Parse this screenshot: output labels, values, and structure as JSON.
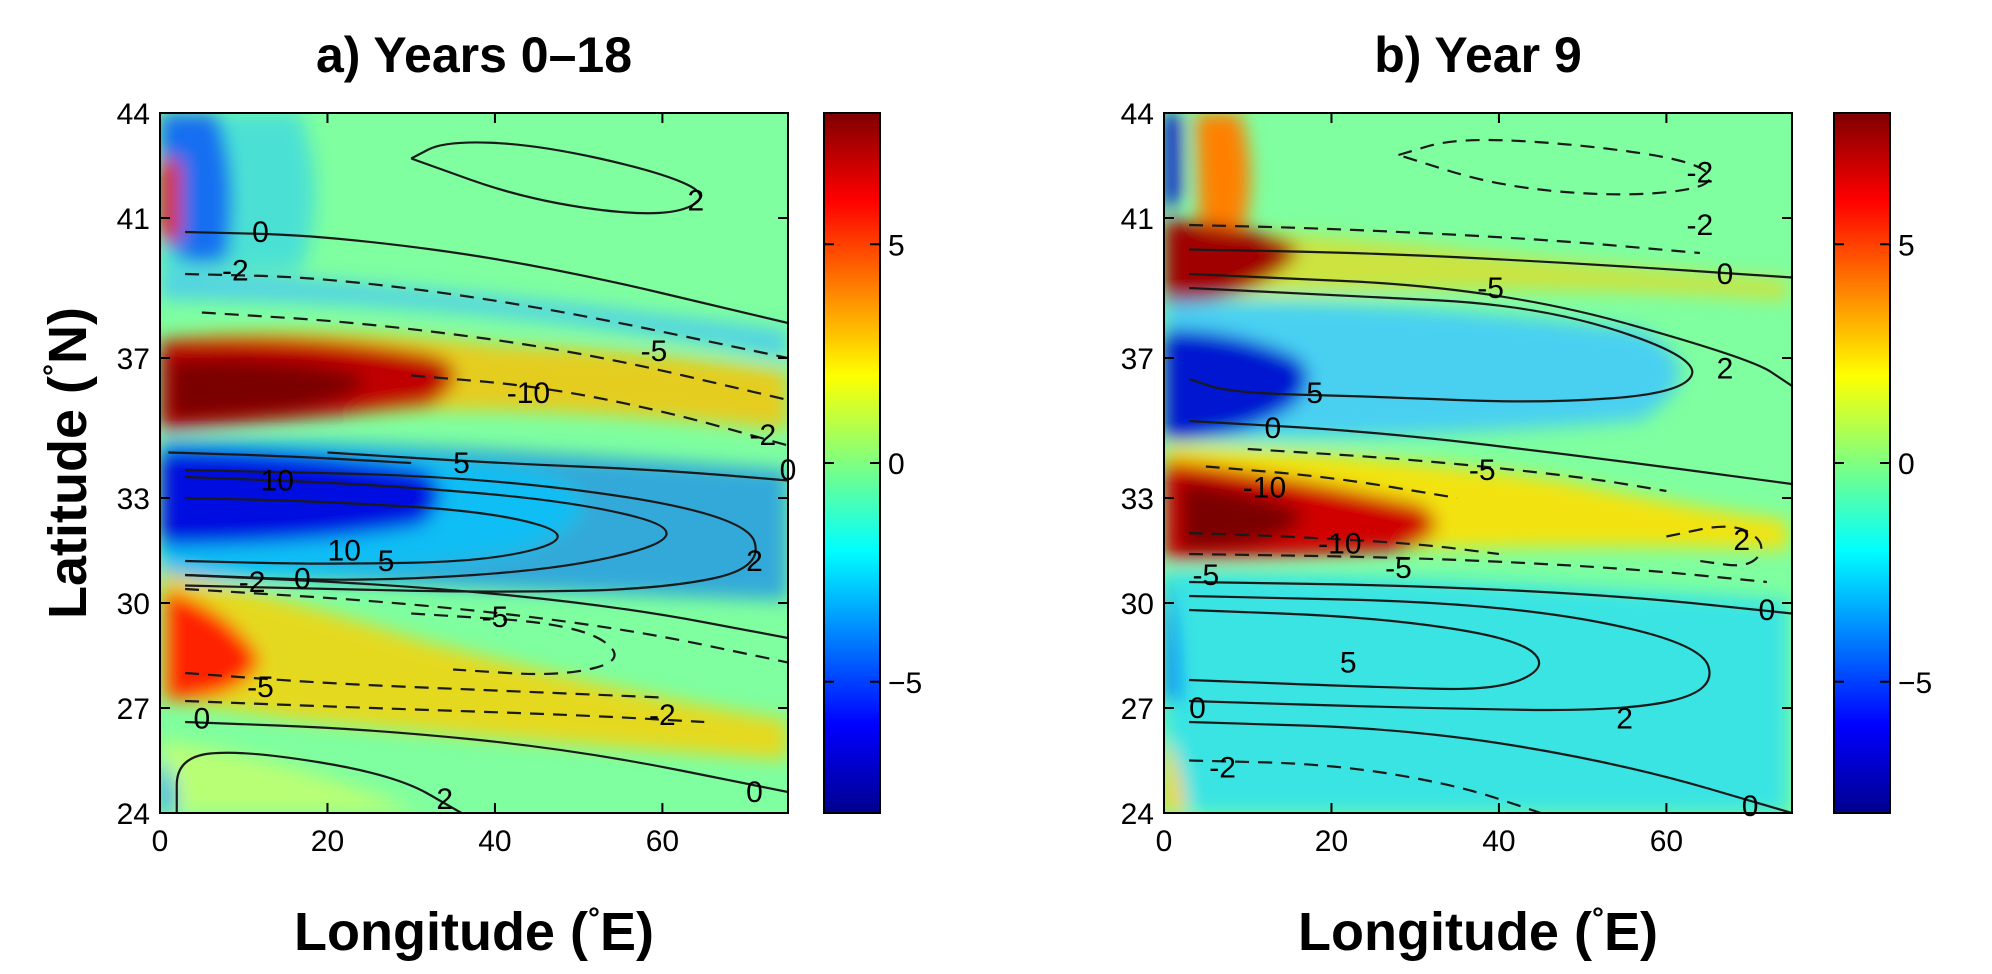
{
  "figure": {
    "ylabel_text": "Latitude (",
    "ylabel_deg": "°",
    "ylabel_unit": "N)",
    "xlabel_text": "Longitude (",
    "xlabel_deg": "°",
    "xlabel_unit": "E)"
  },
  "chart_data": [
    {
      "type": "heatmap",
      "title": "a) Years 0–18",
      "xlabel": "Longitude (°E)",
      "ylabel": "Latitude (°N)",
      "xlim": [
        0,
        75
      ],
      "ylim": [
        24,
        44
      ],
      "xticks": [
        0,
        20,
        40,
        60
      ],
      "yticks": [
        24,
        27,
        30,
        33,
        37,
        41,
        44
      ],
      "colorbar": {
        "range": [
          -8,
          8
        ],
        "ticks": [
          -5,
          0,
          5
        ],
        "colormap": "jet"
      },
      "contour_labels": [
        "0",
        "2",
        "0",
        "-2",
        "-5",
        "-10",
        "-2",
        "0",
        "10",
        "5",
        "2",
        "10",
        "0",
        "-2",
        "-5",
        "-5",
        "-2",
        "0",
        "0",
        "2"
      ],
      "contour_labels_positions_data": [
        {
          "text": "0",
          "lon": 12,
          "lat": 40.6
        },
        {
          "text": "2",
          "lon": 64,
          "lat": 41.5
        },
        {
          "text": "-2",
          "lon": 9,
          "lat": 39.5
        },
        {
          "text": "-5",
          "lon": 59,
          "lat": 37.2
        },
        {
          "text": "-10",
          "lon": 44,
          "lat": 36
        },
        {
          "text": "-2",
          "lon": 72,
          "lat": 34.8
        },
        {
          "text": "0",
          "lon": 75,
          "lat": 33.8
        },
        {
          "text": "10",
          "lon": 14,
          "lat": 33.5
        },
        {
          "text": "5",
          "lon": 36,
          "lat": 34
        },
        {
          "text": "2",
          "lon": 71,
          "lat": 31.2
        },
        {
          "text": "10",
          "lon": 22,
          "lat": 31.5
        },
        {
          "text": "0",
          "lon": 17,
          "lat": 30.7
        },
        {
          "text": "-2",
          "lon": 11,
          "lat": 30.6
        },
        {
          "text": "-5",
          "lon": 40,
          "lat": 29.6
        },
        {
          "text": "5",
          "lon": 27,
          "lat": 31.2
        },
        {
          "text": "-5",
          "lon": 12,
          "lat": 27.6
        },
        {
          "text": "-2",
          "lon": 60,
          "lat": 26.8
        },
        {
          "text": "0",
          "lon": 5,
          "lat": 26.7
        },
        {
          "text": "0",
          "lon": 71,
          "lat": 24.6
        },
        {
          "text": "2",
          "lon": 34,
          "lat": 24.4
        }
      ],
      "series": [
        {
          "level": 2,
          "style": "solid",
          "lon": [
            30,
            34,
            45,
            60,
            66,
            60,
            44,
            30
          ],
          "lat": [
            42.7,
            43.2,
            43.1,
            42.3,
            41.6,
            41.0,
            41.5,
            42.7
          ]
        },
        {
          "level": 0,
          "style": "solid",
          "lon": [
            3,
            20,
            45,
            75
          ],
          "lat": [
            40.6,
            40.5,
            39.7,
            38.0
          ]
        },
        {
          "level": -2,
          "style": "dashed",
          "lon": [
            3,
            20,
            45,
            75
          ],
          "lat": [
            39.4,
            39.3,
            38.5,
            37.0
          ]
        },
        {
          "level": -5,
          "style": "dashed",
          "lon": [
            5,
            25,
            50,
            75
          ],
          "lat": [
            38.3,
            38.0,
            37.2,
            35.8
          ]
        },
        {
          "level": -10,
          "style": "dashed",
          "lon": [
            30,
            45,
            60,
            75
          ],
          "lat": [
            36.5,
            36.2,
            35.5,
            34.5
          ]
        },
        {
          "level": 10,
          "style": "solid",
          "lon": [
            1,
            15,
            30
          ],
          "lat": [
            34.3,
            34.2,
            34.0
          ]
        },
        {
          "level": 5,
          "style": "solid",
          "lon": [
            20,
            40,
            60,
            75
          ],
          "lat": [
            34.3,
            34.0,
            33.8,
            33.5
          ]
        },
        {
          "level": 10,
          "style": "solid",
          "lon": [
            3,
            20,
            40,
            50,
            40,
            20,
            3
          ],
          "lat": [
            33.0,
            32.9,
            32.6,
            31.9,
            31.2,
            31.1,
            31.2
          ]
        },
        {
          "level": 5,
          "style": "solid",
          "lon": [
            3,
            25,
            50,
            64,
            50,
            25,
            3
          ],
          "lat": [
            33.6,
            33.4,
            32.9,
            32.0,
            31.0,
            30.6,
            30.8
          ]
        },
        {
          "level": 2,
          "style": "solid",
          "lon": [
            3,
            40,
            70,
            72,
            60,
            40,
            20,
            3
          ],
          "lat": [
            33.8,
            33.6,
            32.5,
            31.0,
            30.4,
            30.3,
            30.4,
            30.5
          ]
        },
        {
          "level": 0,
          "style": "solid",
          "lon": [
            3,
            30,
            55,
            75
          ],
          "lat": [
            30.8,
            30.5,
            29.9,
            29.0
          ]
        },
        {
          "level": -2,
          "style": "dashed",
          "lon": [
            3,
            30,
            55,
            75
          ],
          "lat": [
            30.4,
            30.0,
            29.3,
            28.3
          ]
        },
        {
          "level": -5,
          "style": "dashed",
          "lon": [
            30,
            50,
            56,
            48,
            35
          ],
          "lat": [
            29.7,
            29.4,
            28.4,
            27.9,
            28.1
          ]
        },
        {
          "level": -5,
          "style": "dashed",
          "lon": [
            3,
            20,
            40,
            60
          ],
          "lat": [
            28.0,
            27.7,
            27.5,
            27.3
          ]
        },
        {
          "level": -2,
          "style": "dashed",
          "lon": [
            3,
            25,
            50,
            65
          ],
          "lat": [
            27.2,
            27.0,
            26.8,
            26.6
          ]
        },
        {
          "level": 0,
          "style": "solid",
          "lon": [
            3,
            25,
            50,
            75
          ],
          "lat": [
            26.6,
            26.4,
            25.8,
            24.6
          ]
        },
        {
          "level": 2,
          "style": "solid",
          "lon": [
            2,
            2,
            10,
            28,
            36
          ],
          "lat": [
            24.0,
            25.6,
            25.8,
            25.1,
            24.0
          ]
        }
      ]
    },
    {
      "type": "heatmap",
      "title": "b) Year 9",
      "xlabel": "Longitude (°E)",
      "ylabel": "",
      "xlim": [
        0,
        75
      ],
      "ylim": [
        24,
        44
      ],
      "xticks": [
        0,
        20,
        40,
        60
      ],
      "yticks": [
        24,
        27,
        30,
        33,
        37,
        41,
        44
      ],
      "colorbar": {
        "range": [
          -8,
          8
        ],
        "ticks": [
          -5,
          0,
          5
        ],
        "colormap": "jet"
      },
      "contour_labels": [
        "-2",
        "-2",
        "0",
        "-5",
        "2",
        "5",
        "0",
        "-5",
        "-10",
        "-10",
        "-5",
        "2",
        "-5",
        "0",
        "5",
        "2",
        "0",
        "-2",
        "0"
      ],
      "contour_labels_positions_data": [
        {
          "text": "-2",
          "lon": 64,
          "lat": 42.3
        },
        {
          "text": "-2",
          "lon": 64,
          "lat": 40.8
        },
        {
          "text": "0",
          "lon": 67,
          "lat": 39.4
        },
        {
          "text": "-5",
          "lon": 39,
          "lat": 39.0
        },
        {
          "text": "2",
          "lon": 67,
          "lat": 36.7
        },
        {
          "text": "5",
          "lon": 18,
          "lat": 36.0
        },
        {
          "text": "0",
          "lon": 13,
          "lat": 35.0
        },
        {
          "text": "-5",
          "lon": 38,
          "lat": 33.8
        },
        {
          "text": "-10",
          "lon": 12,
          "lat": 33.3
        },
        {
          "text": "-10",
          "lon": 21,
          "lat": 31.7
        },
        {
          "text": "-5",
          "lon": 28,
          "lat": 31.0
        },
        {
          "text": "2",
          "lon": 69,
          "lat": 31.8
        },
        {
          "text": "-5",
          "lon": 5,
          "lat": 30.8
        },
        {
          "text": "0",
          "lon": 72,
          "lat": 29.8
        },
        {
          "text": "5",
          "lon": 22,
          "lat": 28.3
        },
        {
          "text": "2",
          "lon": 55,
          "lat": 26.7
        },
        {
          "text": "0",
          "lon": 4,
          "lat": 27.0
        },
        {
          "text": "-2",
          "lon": 7,
          "lat": 25.3
        },
        {
          "text": "0",
          "lon": 70,
          "lat": 24.2
        }
      ],
      "series": [
        {
          "level": -2,
          "style": "dashed",
          "lon": [
            28,
            35,
            50,
            64,
            66,
            55,
            40,
            28
          ],
          "lat": [
            42.8,
            43.3,
            43.1,
            42.6,
            41.9,
            41.6,
            41.9,
            42.8
          ]
        },
        {
          "level": -2,
          "style": "dashed",
          "lon": [
            3,
            20,
            45,
            64
          ],
          "lat": [
            40.8,
            40.7,
            40.4,
            40.0
          ]
        },
        {
          "level": 0,
          "style": "solid",
          "lon": [
            3,
            25,
            50,
            75
          ],
          "lat": [
            40.1,
            40.0,
            39.7,
            39.3
          ]
        },
        {
          "level": 5,
          "style": "solid",
          "lon": [
            3,
            20,
            45,
            64,
            62,
            45,
            25,
            8,
            3
          ],
          "lat": [
            39.0,
            38.8,
            38.5,
            37.0,
            36.0,
            35.7,
            35.9,
            36.0,
            36.4
          ]
        },
        {
          "level": 2,
          "style": "solid",
          "lon": [
            3,
            40,
            70,
            75
          ],
          "lat": [
            39.4,
            39.0,
            37.0,
            36.2
          ]
        },
        {
          "level": 0,
          "style": "solid",
          "lon": [
            3,
            25,
            50,
            75
          ],
          "lat": [
            35.2,
            34.9,
            34.2,
            33.4
          ]
        },
        {
          "level": -5,
          "style": "dashed",
          "lon": [
            10,
            30,
            50,
            60
          ],
          "lat": [
            34.4,
            34.1,
            33.6,
            33.2
          ]
        },
        {
          "level": -10,
          "style": "dashed",
          "lon": [
            5,
            20,
            35
          ],
          "lat": [
            33.9,
            33.6,
            33.0
          ]
        },
        {
          "level": -10,
          "style": "dashed",
          "lon": [
            3,
            15,
            30,
            40
          ],
          "lat": [
            32.0,
            31.9,
            31.7,
            31.4
          ]
        },
        {
          "level": -5,
          "style": "dashed",
          "lon": [
            3,
            30,
            55,
            72
          ],
          "lat": [
            31.4,
            31.3,
            31.0,
            30.6
          ]
        },
        {
          "level": 2,
          "style": "dashed",
          "lon": [
            60,
            68,
            72,
            70,
            64
          ],
          "lat": [
            31.9,
            32.3,
            31.7,
            31.0,
            31.2
          ]
        },
        {
          "level": 0,
          "style": "solid",
          "lon": [
            3,
            30,
            55,
            75
          ],
          "lat": [
            30.6,
            30.5,
            30.2,
            29.7
          ]
        },
        {
          "level": 5,
          "style": "solid",
          "lon": [
            3,
            25,
            42,
            46,
            40,
            25,
            3
          ],
          "lat": [
            29.8,
            29.6,
            29.0,
            28.2,
            27.5,
            27.6,
            27.8
          ]
        },
        {
          "level": 2,
          "style": "solid",
          "lon": [
            3,
            40,
            64,
            66,
            55,
            30,
            3
          ],
          "lat": [
            30.2,
            30.0,
            28.9,
            27.5,
            26.9,
            27.0,
            27.2
          ]
        },
        {
          "level": 0,
          "style": "solid",
          "lon": [
            3,
            30,
            55,
            75
          ],
          "lat": [
            26.6,
            26.4,
            25.4,
            24.0
          ]
        },
        {
          "level": -2,
          "style": "dashed",
          "lon": [
            3,
            20,
            35,
            45
          ],
          "lat": [
            25.5,
            25.4,
            24.8,
            24.0
          ]
        }
      ]
    }
  ]
}
